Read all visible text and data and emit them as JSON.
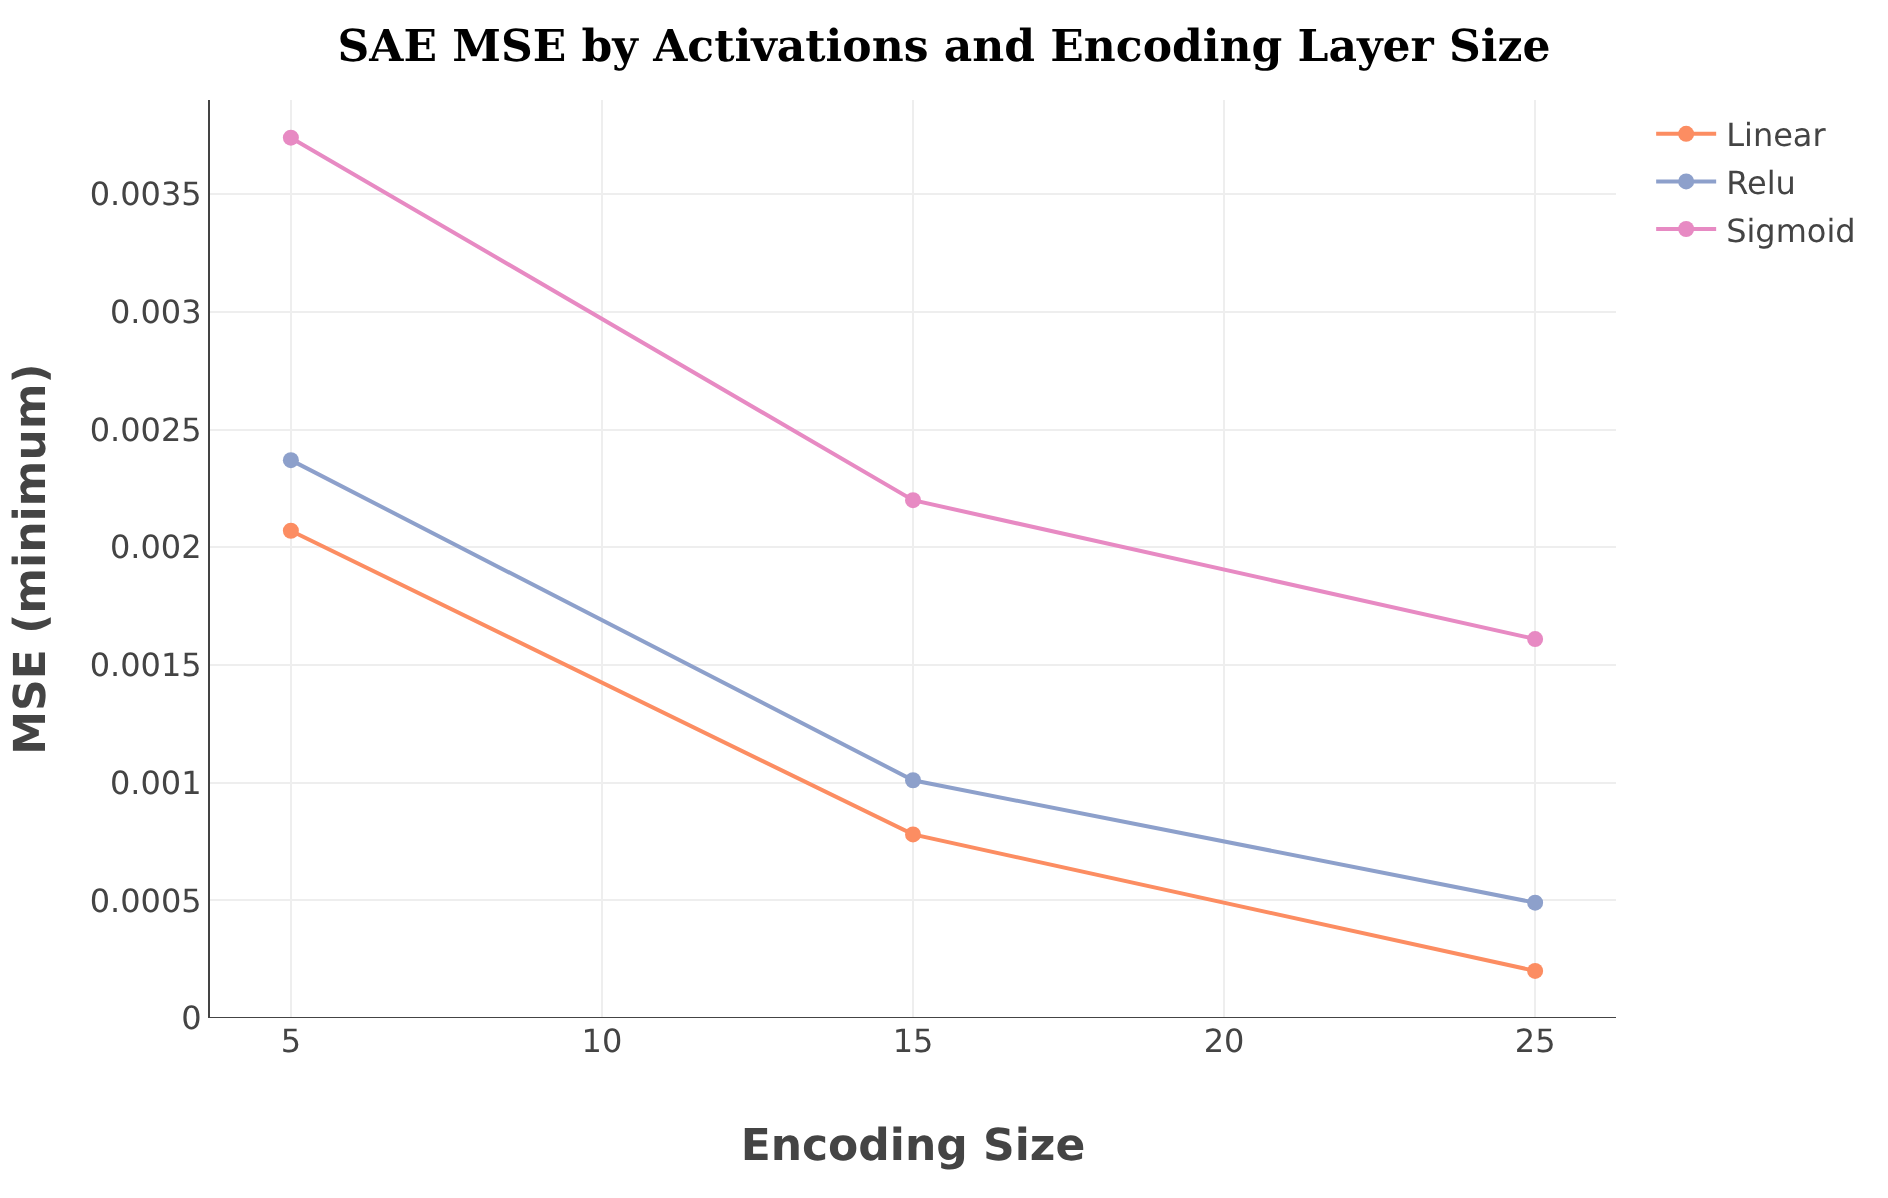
{
  "chart_data": {
    "type": "line",
    "title": "SAE MSE by Activations and Encoding Layer Size",
    "xlabel": "Encoding Size",
    "ylabel": "MSE (minimum)",
    "x": [
      5,
      15,
      25
    ],
    "series": [
      {
        "name": "Linear",
        "color": "#fc8d62",
        "values": [
          0.00207,
          0.00078,
          0.0002
        ]
      },
      {
        "name": "Relu",
        "color": "#8da0cb",
        "values": [
          0.00237,
          0.00101,
          0.00049
        ]
      },
      {
        "name": "Sigmoid",
        "color": "#e78ac3",
        "values": [
          0.00374,
          0.0022,
          0.00161
        ]
      }
    ],
    "xlim": [
      3.7,
      26.3
    ],
    "xticks": [
      5,
      10,
      15,
      20,
      25
    ],
    "ylim": [
      0,
      0.0039
    ],
    "yticks": [
      0,
      0.0005,
      0.001,
      0.0015,
      0.002,
      0.0025,
      0.003,
      0.0035
    ],
    "grid": true,
    "legend": "top right",
    "marker": "circle",
    "line_style": "solid"
  }
}
